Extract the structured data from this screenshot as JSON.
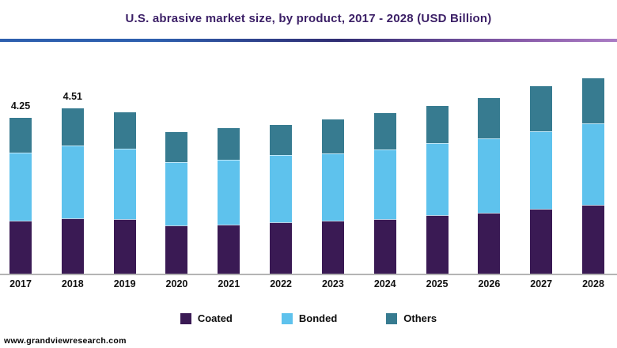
{
  "title": "U.S. abrasive market size, by product, 2017 - 2028 (USD Billion)",
  "footer": {
    "source_text": "www.grandviewresearch.com"
  },
  "colors": {
    "coated": "#3a1a54",
    "bonded": "#5ec2ed",
    "others": "#377b90",
    "title_text": "#3b1f66",
    "divider_gradient": [
      "#2d5fae",
      "#2d5fae",
      "#2f2c72",
      "#8a5caa",
      "#aa7cc4"
    ],
    "baseline": "#b4b4b4",
    "axis_label_text": "#111111"
  },
  "legend": [
    {
      "label": "Coated",
      "color_key": "coated"
    },
    {
      "label": "Bonded",
      "color_key": "bonded"
    },
    {
      "label": "Others",
      "color_key": "others"
    }
  ],
  "chart_data": {
    "type": "bar",
    "stacked": true,
    "title": "U.S. abrasive market size, by product, 2017 - 2028 (USD Billion)",
    "xlabel": "",
    "ylabel": "USD Billion",
    "ylim": [
      0,
      6.3
    ],
    "grid": false,
    "legend_position": "bottom",
    "categories": [
      "2017",
      "2018",
      "2019",
      "2020",
      "2021",
      "2022",
      "2023",
      "2024",
      "2025",
      "2026",
      "2027",
      "2028"
    ],
    "series": [
      {
        "name": "Coated",
        "values": [
          1.45,
          1.51,
          1.49,
          1.32,
          1.34,
          1.4,
          1.45,
          1.49,
          1.6,
          1.66,
          1.77,
          1.88
        ]
      },
      {
        "name": "Bonded",
        "values": [
          1.86,
          1.98,
          1.92,
          1.73,
          1.77,
          1.83,
          1.83,
          1.9,
          1.96,
          2.03,
          2.11,
          2.22
        ]
      },
      {
        "name": "Others",
        "values": [
          0.94,
          1.02,
          0.99,
          0.82,
          0.86,
          0.82,
          0.93,
          0.99,
          1.01,
          1.1,
          1.23,
          1.23
        ]
      }
    ],
    "totals": [
      4.25,
      4.51,
      4.4,
      3.87,
      3.97,
      4.05,
      4.21,
      4.38,
      4.57,
      4.79,
      5.11,
      5.33
    ],
    "data_labels": {
      "2017": "4.25",
      "2018": "4.51"
    }
  }
}
